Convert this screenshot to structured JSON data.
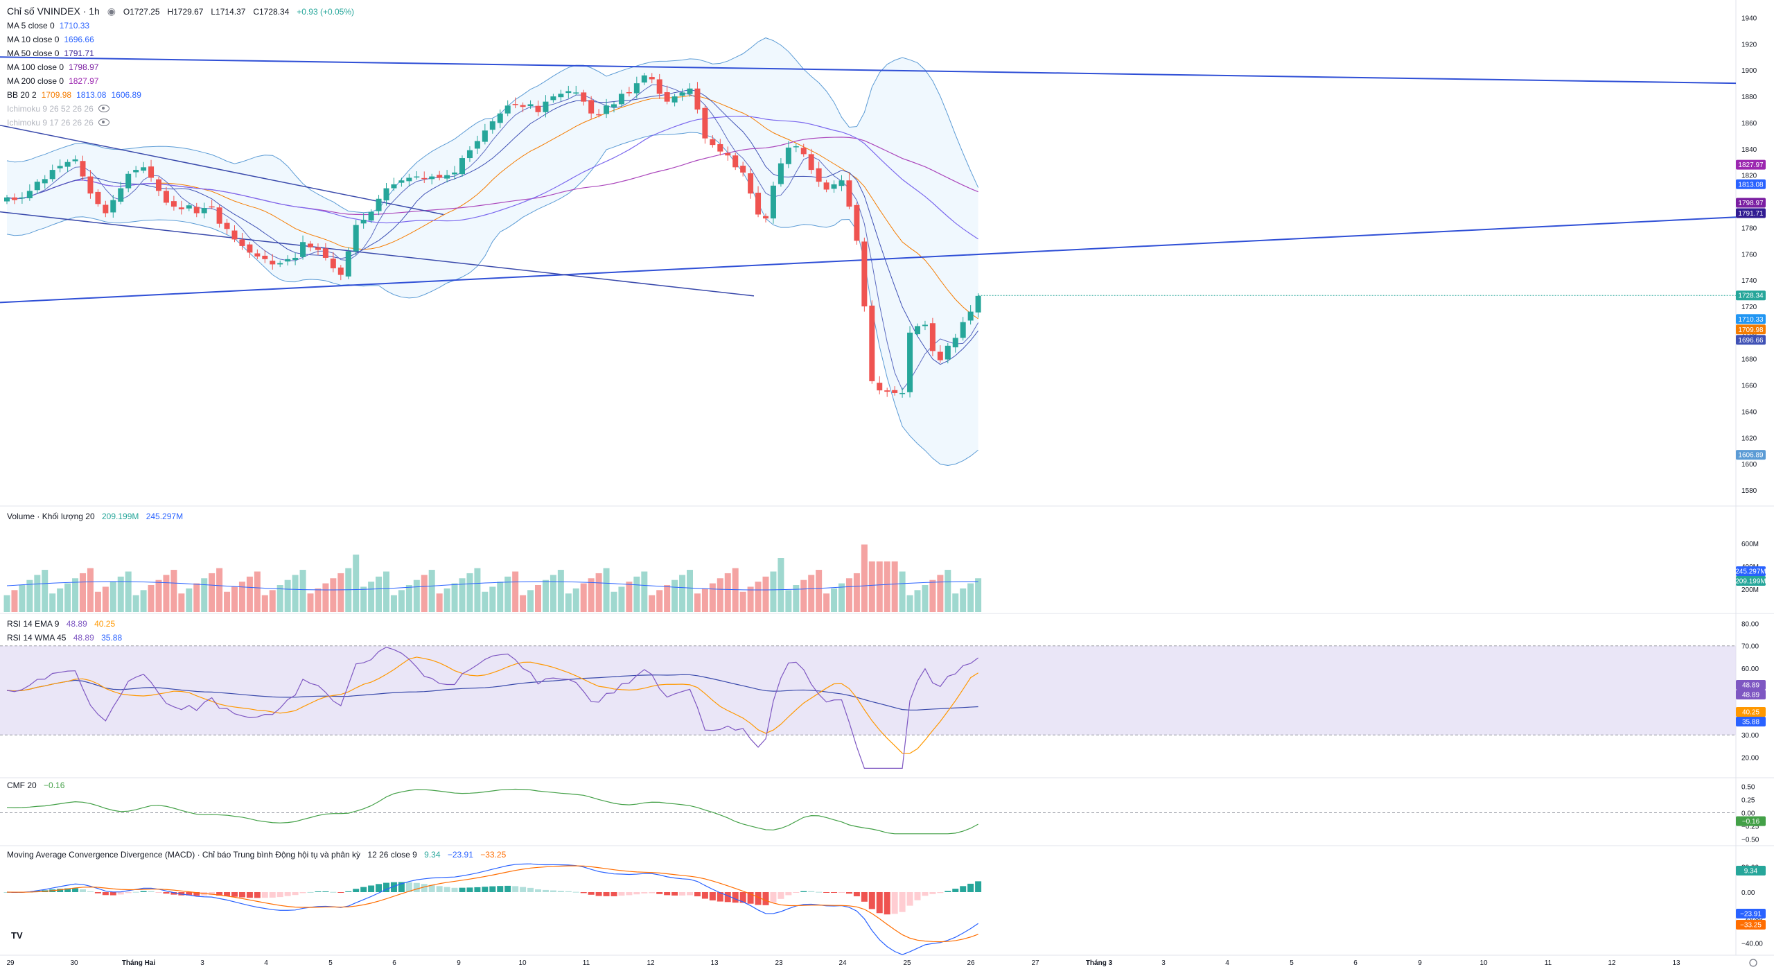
{
  "header": {
    "symbol": "Chỉ số VNINDEX · 1h",
    "ohlc": [
      "O1727.25",
      "H1729.67",
      "L1714.37",
      "C1728.34",
      "+0.93 (+0.05%)"
    ]
  },
  "legend": [
    {
      "label": "MA 5 close 0",
      "value": "1710.33",
      "color": "#2962ff"
    },
    {
      "label": "MA 10 close 0",
      "value": "1696.66",
      "color": "#2962ff"
    },
    {
      "label": "MA 50 close 0",
      "value": "1791.71",
      "color": "#311b92"
    },
    {
      "label": "MA 100 close 0",
      "value": "1798.97",
      "color": "#7b1fa2"
    },
    {
      "label": "MA 200 close 0",
      "value": "1827.97",
      "color": "#9c27b0"
    },
    {
      "label": "BB 20 2",
      "value": "1709.98",
      "value2": "1813.08",
      "value3": "1606.89",
      "color": "#f57c00"
    },
    {
      "label": "Ichimoku 9 26 52 26 26",
      "value": "",
      "color": "#b2b5be"
    },
    {
      "label": "Ichimoku 9 17 26 26 26",
      "value": "",
      "color": "#b2b5be"
    }
  ],
  "panes": {
    "volume": {
      "label": "Volume · Khối lượng 20",
      "v1": "209.199M",
      "v2": "245.297M",
      "c1": "#26a69a",
      "c2": "#2962ff"
    },
    "rsi1": {
      "label": "RSI 14 EMA 9",
      "v1": "48.89",
      "v2": "40.25",
      "c1": "#7e57c2",
      "c2": "#ff9800"
    },
    "rsi2": {
      "label": "RSI 14 WMA 45",
      "v1": "48.89",
      "v2": "35.88",
      "c1": "#7e57c2",
      "c2": "#2962ff"
    },
    "cmf": {
      "label": "CMF 20",
      "v1": "−0.16",
      "c1": "#43a047"
    },
    "macd": {
      "label": "Moving Average Convergence Divergence (MACD) · Chỉ báo Trung bình Động hội tụ và phân kỳ",
      "params": "12 26 close 9",
      "v1": "9.34",
      "v2": "−23.91",
      "v3": "−33.25",
      "c1": "#26a69a",
      "c2": "#2962ff",
      "c3": "#ff6d00"
    }
  },
  "colors": {
    "up": "#26a69a",
    "down": "#ef5350",
    "volUp": "#9fd8cf",
    "volDown": "#f4a3a2",
    "bbFill": "#e3f2fd",
    "rsiBand": "#e1dcf4"
  },
  "chart_data": {
    "type": "candlestick",
    "title": "Chỉ số VNINDEX · 1h",
    "x_ticks": [
      "29",
      "30",
      "Tháng Hai",
      "3",
      "4",
      "5",
      "6",
      "9",
      "10",
      "11",
      "12",
      "13",
      "23",
      "24",
      "25",
      "26",
      "27",
      "Tháng 3",
      "3",
      "4",
      "5",
      "6",
      "9",
      "10",
      "11",
      "12",
      "13"
    ],
    "price_axis": {
      "ylim": [
        1570,
        1945
      ],
      "ticks": [
        1580,
        1600,
        1620,
        1640,
        1660,
        1680,
        1700,
        1720,
        1740,
        1760,
        1780,
        1800,
        1820,
        1840,
        1860,
        1880,
        1900,
        1920,
        1940
      ]
    },
    "price_labels": [
      "1827.97",
      "1813.08",
      "1798.97",
      "1791.71",
      "1728.34",
      "1710.33",
      "1709.98",
      "1696.66",
      "1606.89"
    ],
    "closes": [
      1803,
      1801,
      1803,
      1808,
      1815,
      1817,
      1824,
      1827,
      1830,
      1832,
      1819,
      1806,
      1798,
      1791,
      1801,
      1810,
      1821,
      1824,
      1826,
      1818,
      1808,
      1799,
      1796,
      1794,
      1797,
      1791,
      1795,
      1796,
      1783,
      1779,
      1771,
      1766,
      1761,
      1758,
      1756,
      1752,
      1753,
      1756,
      1757,
      1769,
      1765,
      1763,
      1757,
      1749,
      1744,
      1762,
      1782,
      1786,
      1792,
      1802,
      1810,
      1813,
      1816,
      1818,
      1819,
      1817,
      1819,
      1818,
      1820,
      1822,
      1833,
      1839,
      1846,
      1854,
      1861,
      1867,
      1873,
      1874,
      1872,
      1874,
      1868,
      1876,
      1880,
      1882,
      1884,
      1883,
      1876,
      1867,
      1866,
      1873,
      1874,
      1882,
      1883,
      1890,
      1896,
      1893,
      1882,
      1876,
      1880,
      1883,
      1886,
      1870,
      1848,
      1843,
      1838,
      1835,
      1826,
      1822,
      1806,
      1790,
      1787,
      1812,
      1829,
      1841,
      1842,
      1836,
      1824,
      1815,
      1809,
      1813,
      1816,
      1796,
      1770,
      1720,
      1663,
      1656,
      1655,
      1654,
      1654,
      1700,
      1705,
      1706,
      1686,
      1679,
      1690,
      1696,
      1708,
      1716,
      1728
    ],
    "volume_axis": {
      "ticks": [
        "200M",
        "400M",
        "600M"
      ]
    },
    "rsi_axis": {
      "ticks": [
        20,
        30,
        40,
        50,
        60,
        70,
        80
      ],
      "band": [
        30,
        70
      ]
    },
    "cmf_axis": {
      "ticks": [
        "−0.50",
        "−0.25",
        "0.00",
        "0.25",
        "0.50"
      ]
    },
    "macd_axis": {
      "ticks": [
        "−40.00",
        "−20.00",
        "0.00",
        "20.00"
      ]
    }
  }
}
